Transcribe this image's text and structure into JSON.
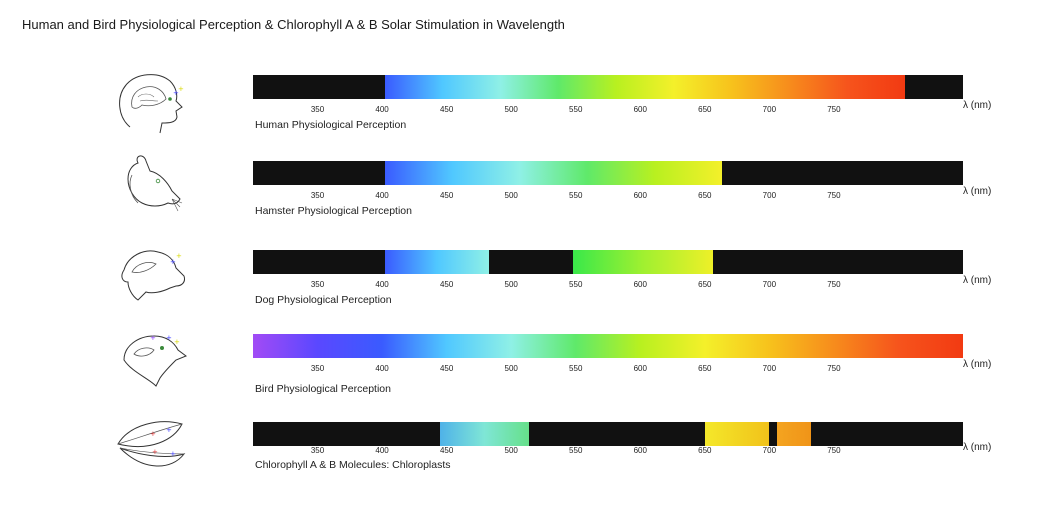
{
  "title": "Human and Bird Physiological Perception & Chlorophyll A & B Solar Stimulation in Wavelength",
  "scale": {
    "min_nm": 300,
    "max_nm": 850
  },
  "tick_values": [
    "350",
    "400",
    "450",
    "500",
    "550",
    "600",
    "650",
    "700",
    "750"
  ],
  "unit_label": "λ (nm)",
  "rows": [
    {
      "id": "human",
      "label": "Human Physiological Perception",
      "icon": "human-head-icon",
      "segments": [
        {
          "start": 402,
          "end": 805,
          "gradient": [
            "#3a5bff",
            "#50c8ff",
            "#8ff0e6",
            "#5fe96a",
            "#b8f020",
            "#f4f02a",
            "#f7c21c",
            "#f78c1c",
            "#f6541c",
            "#f23a12"
          ]
        }
      ]
    },
    {
      "id": "hamster",
      "label": "Hamster Physiological Perception",
      "icon": "hamster-head-icon",
      "segments": [
        {
          "start": 402,
          "end": 663,
          "gradient": [
            "#3a5bff",
            "#50c8ff",
            "#8ff0e6",
            "#5fe96a",
            "#b8f020",
            "#f4f02a"
          ]
        }
      ]
    },
    {
      "id": "dog",
      "label": "Dog Physiological Perception",
      "icon": "dog-head-icon",
      "segments": [
        {
          "start": 402,
          "end": 483,
          "gradient": [
            "#3a5bff",
            "#50c8ff",
            "#8ff0e6"
          ]
        },
        {
          "start": 548,
          "end": 656,
          "gradient": [
            "#39e84a",
            "#a0f030",
            "#eef028"
          ]
        }
      ]
    },
    {
      "id": "bird",
      "label": "Bird Physiological Perception",
      "icon": "bird-head-icon",
      "segments": [
        {
          "start": 300,
          "end": 850,
          "gradient": [
            "#a24bf5",
            "#5a48ff",
            "#3a5bff",
            "#50c8ff",
            "#8ff0e6",
            "#5fe96a",
            "#b8f020",
            "#f4f02a",
            "#f7c21c",
            "#f78c1c",
            "#f6541c",
            "#f23a12"
          ]
        }
      ]
    },
    {
      "id": "chlorophyll",
      "label": "Chlorophyll A & B Molecules: Chloroplasts",
      "icon": "leaf-icon",
      "segments": [
        {
          "start": 445,
          "end": 514,
          "gradient": [
            "#4fb2e8",
            "#7fe6d6",
            "#66e08a"
          ]
        },
        {
          "start": 650,
          "end": 700,
          "gradient": [
            "#f4e82a",
            "#f1c21a"
          ]
        },
        {
          "start": 706,
          "end": 732,
          "gradient": [
            "#f4a420",
            "#f09418"
          ]
        }
      ]
    }
  ]
}
